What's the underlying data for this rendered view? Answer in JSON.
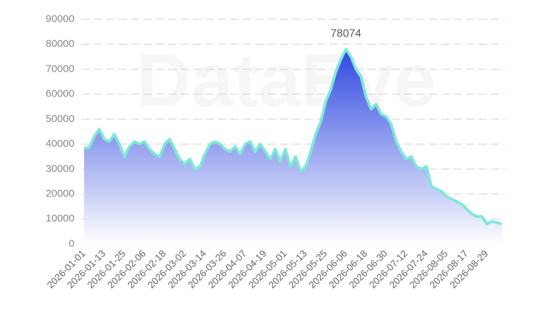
{
  "chart_data": {
    "type": "area",
    "watermark": "DataEye",
    "color": "#7ee8d8",
    "fill_top": "#2f48e0",
    "label_max": true,
    "grid": true,
    "ylim": [
      0,
      90000
    ],
    "yticks": [
      0,
      10000,
      20000,
      30000,
      40000,
      50000,
      60000,
      70000,
      80000,
      90000
    ],
    "categories": [
      "2026-01-01",
      null,
      null,
      null,
      "2026-01-13",
      null,
      null,
      null,
      "2026-01-25",
      null,
      null,
      null,
      "2026-02-06",
      null,
      null,
      null,
      "2026-02-18",
      null,
      null,
      null,
      "2026-03-02",
      null,
      null,
      null,
      "2026-03-14",
      null,
      null,
      null,
      "2026-03-26",
      null,
      null,
      null,
      "2026-04-07",
      null,
      null,
      null,
      "2026-04-19",
      null,
      null,
      null,
      "2026-05-01",
      null,
      null,
      null,
      "2026-05-13",
      null,
      null,
      null,
      "2026-05-25",
      null,
      null,
      null,
      "2026-06-06",
      null,
      null,
      null,
      "2026-06-18",
      null,
      null,
      null,
      "2026-06-30",
      null,
      null,
      null,
      "2026-07-12",
      null,
      null,
      null,
      "2026-07-24",
      null,
      null,
      null,
      "2026-08-05",
      null,
      null,
      null,
      "2026-08-17",
      null,
      null,
      null,
      "2026-08-29",
      null,
      null,
      null
    ],
    "values": [
      38500,
      38500,
      43000,
      46000,
      42000,
      41000,
      44000,
      40000,
      35000,
      39000,
      41000,
      40000,
      41000,
      38000,
      36000,
      35000,
      40000,
      42000,
      38000,
      34000,
      32000,
      34000,
      30000,
      31000,
      36000,
      40000,
      41000,
      40000,
      38000,
      37000,
      39000,
      36000,
      40000,
      41000,
      37000,
      40000,
      37000,
      34000,
      38000,
      33000,
      38000,
      31000,
      35000,
      29000,
      31000,
      37000,
      44000,
      49000,
      57000,
      62000,
      69000,
      74000,
      78074,
      75000,
      70000,
      67000,
      59000,
      54000,
      56000,
      52000,
      51000,
      48000,
      41000,
      37000,
      34000,
      35000,
      31000,
      30000,
      31000,
      23000,
      22000,
      21000,
      19000,
      18000,
      17000,
      16000,
      14000,
      12000,
      11000,
      11000,
      8000,
      9000,
      8500,
      8000
    ]
  }
}
